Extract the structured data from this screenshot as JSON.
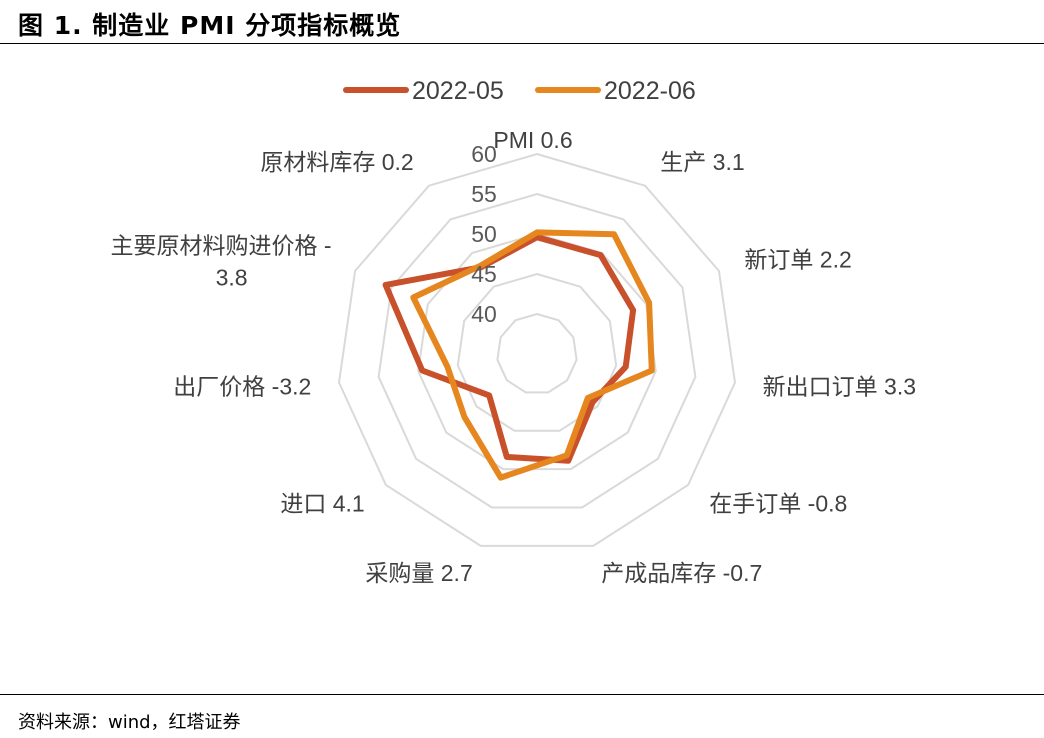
{
  "figure": {
    "title": "图 1. 制造业 PMI 分项指标概览",
    "source": "资料来源：wind，红塔证券"
  },
  "colors": {
    "series_2022_05": "#c8502a",
    "series_2022_06": "#e6861e",
    "grid": "#d9d9d9"
  },
  "chart_data": {
    "type": "radar",
    "title": "",
    "categories": [
      "PMI 0.6",
      "生产 3.1",
      "新订单 2.2",
      "新出口订单 3.3",
      "在手订单 -0.8",
      "产成品库存 -0.7",
      "采购量 2.7",
      "进口 4.1",
      "出厂价格 -3.2",
      "主要原材料购进价格 -3.8",
      "原材料库存 0.2"
    ],
    "rlim": [
      35,
      60
    ],
    "ticks": [
      40,
      45,
      50,
      55,
      60
    ],
    "tick_labels": [
      "40",
      "45",
      "50",
      "55",
      "60"
    ],
    "grid": true,
    "legend_position": "top",
    "series": [
      {
        "name": "2022-05",
        "values": [
          49.6,
          49.7,
          48.2,
          46.2,
          44.2,
          48.9,
          48.4,
          42.9,
          49.5,
          55.8,
          47.9
        ]
      },
      {
        "name": "2022-06",
        "values": [
          50.2,
          52.8,
          50.4,
          49.5,
          43.4,
          48.2,
          51.1,
          47.0,
          46.3,
          52.0,
          48.1
        ]
      }
    ]
  }
}
